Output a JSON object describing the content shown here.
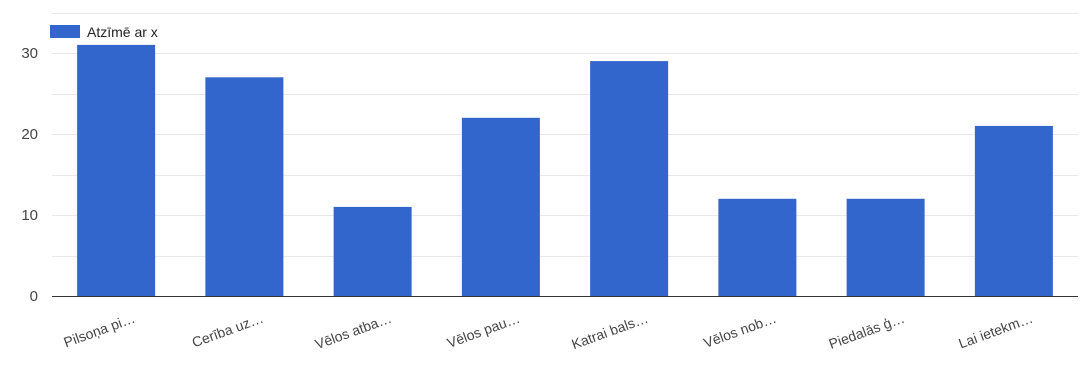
{
  "chart_data": {
    "type": "bar",
    "categories": [
      "Pilsoņa pi…",
      "Cerība uz…",
      "Vēlos atba…",
      "Vēlos pau…",
      "Katrai bals…",
      "Vēlos nob…",
      "Piedalās ģ…",
      "Lai ietekm…"
    ],
    "series": [
      {
        "name": "Atzīmē ar x",
        "values": [
          31,
          27,
          11,
          22,
          29,
          12,
          12,
          21
        ]
      }
    ],
    "ylim": [
      0,
      30
    ],
    "yticks": [
      0,
      10,
      20,
      30
    ],
    "grid": true,
    "legend_position": "top-left",
    "colors": {
      "bar": "#3366cc",
      "grid": "#e8e8e8",
      "axis": "#333333"
    }
  }
}
